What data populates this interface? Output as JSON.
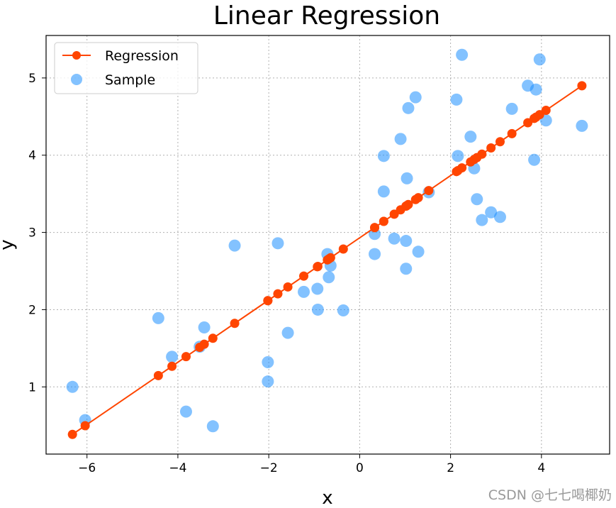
{
  "chart_data": {
    "type": "scatter",
    "title": "Linear Regression",
    "xlabel": "x",
    "ylabel": "y",
    "xlim": [
      -6.9,
      5.5
    ],
    "ylim": [
      0.13,
      5.55
    ],
    "xticks": [
      -6,
      -4,
      -2,
      0,
      2,
      4
    ],
    "yticks": [
      1,
      2,
      3,
      4,
      5
    ],
    "xtick_labels": [
      "−6",
      "−4",
      "−2",
      "0",
      "2",
      "4"
    ],
    "ytick_labels": [
      "1",
      "2",
      "3",
      "4",
      "5"
    ],
    "grid": true,
    "legend_position": "top-left",
    "legend": [
      "Regression",
      "Sample"
    ],
    "colors": {
      "regression": "#FF4500",
      "sample": "#1E90FF"
    },
    "sample": {
      "x": [
        -6.32,
        -6.04,
        -4.43,
        -4.13,
        -3.82,
        -3.52,
        -3.42,
        -3.23,
        -2.75,
        -2.02,
        -2.02,
        -1.8,
        -1.58,
        -1.23,
        -0.93,
        -0.92,
        -0.71,
        -0.68,
        -0.64,
        -0.36,
        0.33,
        0.33,
        0.53,
        0.53,
        0.76,
        0.9,
        1.02,
        1.02,
        1.04,
        1.07,
        1.23,
        1.29,
        1.52,
        2.13,
        2.16,
        2.25,
        2.44,
        2.52,
        2.58,
        2.69,
        2.89,
        3.09,
        3.35,
        3.7,
        3.84,
        3.88,
        3.96,
        4.1,
        4.89
      ],
      "y": [
        1.0,
        0.57,
        1.89,
        1.39,
        0.68,
        1.52,
        1.77,
        0.49,
        2.83,
        1.32,
        1.07,
        2.86,
        1.7,
        2.23,
        2.27,
        2.0,
        2.72,
        2.42,
        2.57,
        1.99,
        2.72,
        2.98,
        3.99,
        3.53,
        2.92,
        4.21,
        2.89,
        2.53,
        3.7,
        4.61,
        4.75,
        2.75,
        3.52,
        4.72,
        3.99,
        5.3,
        4.24,
        3.83,
        3.43,
        3.16,
        3.26,
        3.2,
        4.6,
        4.9,
        3.94,
        4.85,
        5.24,
        4.45,
        4.38
      ]
    },
    "regression": {
      "slope": 0.4027,
      "intercept": 2.93
    },
    "watermark": "CSDN @七七喝椰奶"
  }
}
